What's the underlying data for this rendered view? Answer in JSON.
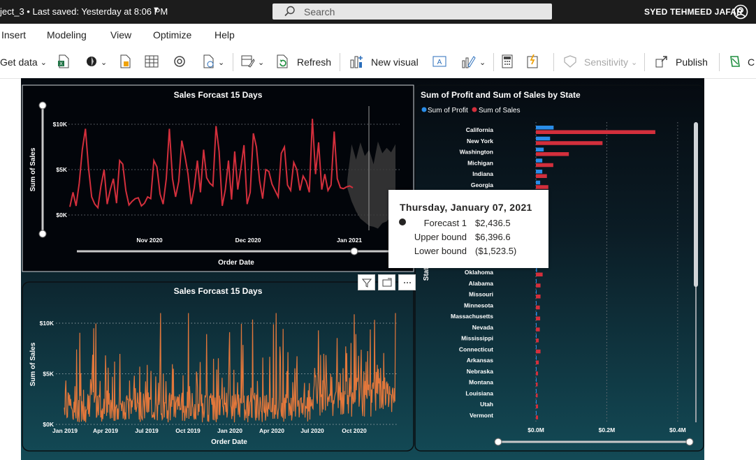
{
  "titlebar": {
    "doc_title": "ject_3 • Last saved: Yesterday at 8:06 PM",
    "search_placeholder": "Search",
    "user_name": "SYED TEHMEED JAFAR"
  },
  "menu": [
    "Insert",
    "Modeling",
    "View",
    "Optimize",
    "Help"
  ],
  "ribbon": {
    "get_data": "Get data",
    "refresh": "Refresh",
    "new_visual": "New visual",
    "sensitivity": "Sensitivity",
    "publish": "Publish",
    "cut_label": "C"
  },
  "colors": {
    "sales_red": "#d32f3c",
    "profit_blue": "#2a8de8",
    "history_orange": "#e2773b",
    "forecast_band": "#3a3a3a"
  },
  "tooltip": {
    "title": "Thursday, January 07, 2021",
    "rows": [
      {
        "label": "Forecast 1",
        "value": "$2,436.5"
      },
      {
        "label": "Upper bound",
        "value": "$6,396.6"
      },
      {
        "label": "Lower bound",
        "value": "($1,523.5)"
      }
    ]
  },
  "chart_data": [
    {
      "type": "line",
      "title": "Sales Forcast 15 Days",
      "xlabel": "Order Date",
      "ylabel": "Sum of Sales",
      "x_ticks": [
        "Nov 2020",
        "Dec 2020",
        "Jan 2021"
      ],
      "y_ticks": [
        "$0K",
        "$5K",
        "$10K"
      ],
      "ylim": [
        0,
        10000
      ],
      "x_range": [
        "2020-10-01",
        "2021-01-14"
      ],
      "series": [
        {
          "values": [
            900,
            2500,
            1000,
            3500,
            7200,
            9500,
            5200,
            2000,
            1200,
            800,
            3200,
            5000,
            1200,
            2800,
            4000,
            1300,
            6000,
            5600,
            2700,
            1100,
            1500,
            1800,
            1900,
            1000,
            1300,
            2000,
            1800,
            6000,
            5300,
            2300,
            1200,
            4000,
            9500,
            4000,
            2000,
            3700,
            8200,
            6500,
            4500,
            1200,
            3000,
            6000,
            2500,
            7200,
            4100,
            3500,
            3200,
            9800,
            7000,
            1000,
            2800,
            6000,
            1700,
            7000,
            2800,
            5200,
            7700,
            1200,
            2500,
            9000,
            7500,
            3800,
            1800,
            5000,
            4800,
            3400,
            2700,
            2000,
            6800,
            7500,
            3300,
            2700,
            5800,
            5000,
            2700,
            4300,
            3700,
            2500,
            10600,
            4500,
            8000,
            2800,
            4500,
            2700,
            3300,
            9200,
            4000,
            3000,
            2900,
            3100,
            3200,
            3000
          ]
        }
      ],
      "forecast": {
        "date": "2021-01-07",
        "value": 2436.5,
        "upper": 6396.6,
        "lower": -1523.5
      }
    },
    {
      "type": "line",
      "title": "Sales Forcast 15 Days",
      "xlabel": "Order Date",
      "ylabel": "Sum of Sales",
      "x_ticks": [
        "Jan 2019",
        "Apr 2019",
        "Jul 2019",
        "Oct 2019",
        "Jan 2020",
        "Apr 2020",
        "Jul 2020",
        "Oct 2020"
      ],
      "y_ticks": [
        "$0K",
        "$5K",
        "$10K"
      ],
      "ylim": [
        0,
        10000
      ],
      "x_range": [
        "2019-01-01",
        "2020-12-31"
      ]
    },
    {
      "type": "bar",
      "title": "Sum of Profit and Sum of Sales by State",
      "ylabel": "State",
      "x_ticks": [
        "$0.0M",
        "$0.2M",
        "$0.4M"
      ],
      "xlim": [
        0,
        0.42
      ],
      "categories": [
        "California",
        "New York",
        "Washington",
        "Michigan",
        "Indiana",
        "Georgia",
        "Oklahoma",
        "Alabama",
        "Missouri",
        "Minnesota",
        "Massachusetts",
        "Nevada",
        "Mississippi",
        "Connecticut",
        "Arkansas",
        "Nebraska",
        "Montana",
        "Louisiana",
        "Utah",
        "Vermont"
      ],
      "series": [
        {
          "name": "Sum of Profit",
          "values": [
            0.05,
            0.04,
            0.022,
            0.018,
            0.018,
            0.012,
            0.003,
            0.001,
            0.002,
            0.002,
            0.003,
            0.001,
            0.001,
            0.001,
            0.001,
            0.0005,
            0.0003,
            0.0006,
            0.0006,
            0.0005
          ]
        },
        {
          "name": "Sum of Sales",
          "values": [
            0.337,
            0.188,
            0.093,
            0.049,
            0.031,
            0.035,
            0.019,
            0.013,
            0.013,
            0.011,
            0.012,
            0.011,
            0.008,
            0.013,
            0.008,
            0.006,
            0.005,
            0.005,
            0.006,
            0.006
          ]
        }
      ]
    }
  ]
}
